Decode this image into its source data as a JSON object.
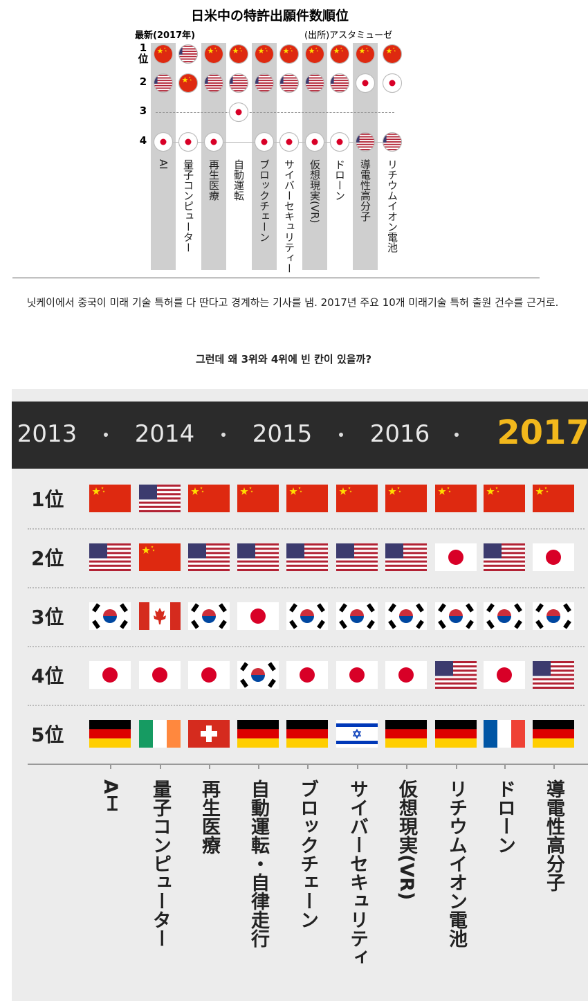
{
  "top_chart": {
    "title": "日米中の特許出願件数順位",
    "latest": "最新(2017年)",
    "source": "(出所)アスタミューゼ",
    "ranks": [
      "1位",
      "2",
      "3",
      "4"
    ],
    "columns": [
      "AI",
      "量子コンピューター",
      "再生医療",
      "自動運転",
      "ブロックチェーン",
      "サイバーセキュリティー",
      "仮想現実(VR)",
      "ドローン",
      "導電性高分子",
      "リチウムイオン電池"
    ]
  },
  "article": {
    "text": "닛케이에서 중국이 미래 기술 특허를 다 딴다고 경계하는 기사를 냄. 2017년 주요 10개 미래기술 특허 출원 건수를 근거로.",
    "question": "그런데 왜 3위와 4위에 빈 칸이 있을까?"
  },
  "bottom_chart": {
    "years": [
      "2013",
      "2014",
      "2015",
      "2016",
      "2017"
    ],
    "ranks": [
      "1位",
      "2位",
      "3位",
      "4位",
      "5位"
    ],
    "columns": [
      "AＩ",
      "量子コンピューター",
      "再生医療",
      "自動運転・自律走行",
      "ブロックチェーン",
      "サイバーセキュリティ",
      "仮想現実(VR)",
      "リチウムイオン電池",
      "ドローン",
      "導電性高分子"
    ]
  }
}
